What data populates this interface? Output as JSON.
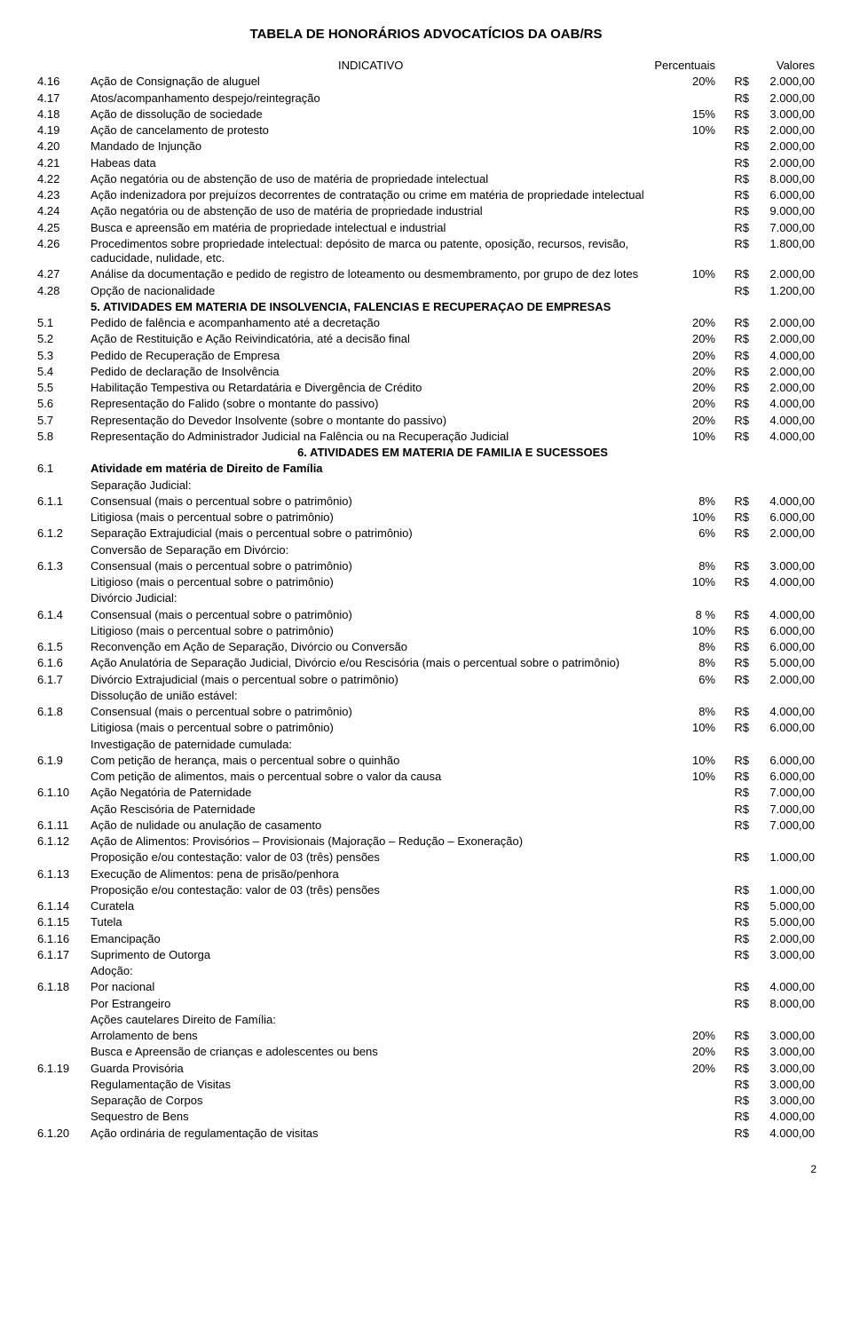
{
  "title": "TABELA DE HONORÁRIOS ADVOCATÍCIOS DA OAB/RS",
  "headers": {
    "indicativo": "INDICATIVO",
    "percentuais": "Percentuais",
    "valores": "Valores"
  },
  "page_number": "2",
  "fontsize_body": 13,
  "fontsize_title": 15,
  "text_color": "#000000",
  "background_color": "#ffffff",
  "rows": [
    {
      "num": "4.16",
      "desc": "Ação de Consignação de aluguel",
      "pct": "20%",
      "cur": "R$",
      "val": "2.000,00"
    },
    {
      "num": "4.17",
      "desc": "Atos/acompanhamento despejo/reintegração",
      "pct": "",
      "cur": "R$",
      "val": "2.000,00"
    },
    {
      "num": "4.18",
      "desc": "Ação de dissolução de sociedade",
      "pct": "15%",
      "cur": "R$",
      "val": "3.000,00"
    },
    {
      "num": "4.19",
      "desc": "Ação de cancelamento de protesto",
      "pct": "10%",
      "cur": "R$",
      "val": "2.000,00"
    },
    {
      "num": "4.20",
      "desc": "Mandado de Injunção",
      "pct": "",
      "cur": "R$",
      "val": "2.000,00"
    },
    {
      "num": "4.21",
      "desc": "Habeas data",
      "pct": "",
      "cur": "R$",
      "val": "2.000,00"
    },
    {
      "num": "4.22",
      "desc": "Ação negatória ou de abstenção de uso de matéria de propriedade intelectual",
      "pct": "",
      "cur": "R$",
      "val": "8.000,00"
    },
    {
      "num": "4.23",
      "desc": "Ação indenizadora por prejuízos decorrentes de contratação ou crime em matéria de propriedade intelectual",
      "pct": "",
      "cur": "R$",
      "val": "6.000,00"
    },
    {
      "num": "4.24",
      "desc": "Ação negatória ou de abstenção de uso de matéria de propriedade industrial",
      "pct": "",
      "cur": "R$",
      "val": "9.000,00"
    },
    {
      "num": "4.25",
      "desc": "Busca e apreensão em matéria de propriedade intelectual e industrial",
      "pct": "",
      "cur": "R$",
      "val": "7.000,00"
    },
    {
      "num": "4.26",
      "desc": "Procedimentos sobre propriedade intelectual: depósito de marca ou patente, oposição, recursos, revisão, caducidade, nulidade, etc.",
      "pct": "",
      "cur": "R$",
      "val": "1.800,00"
    },
    {
      "num": "4.27",
      "desc": "Análise da documentação e pedido de registro de loteamento ou desmembramento, por grupo de dez lotes",
      "pct": "10%",
      "cur": "R$",
      "val": "2.000,00"
    },
    {
      "num": "4.28",
      "desc": "Opção de nacionalidade",
      "pct": "",
      "cur": "R$",
      "val": "1.200,00"
    },
    {
      "section": true,
      "num": "",
      "desc": "5.    ATIVIDADES EM MATERIA DE INSOLVENCIA, FALENCIAS E RECUPERAÇAO DE EMPRESAS"
    },
    {
      "num": "5.1",
      "desc": "Pedido de falência e acompanhamento até a decretação",
      "pct": "20%",
      "cur": "R$",
      "val": "2.000,00"
    },
    {
      "num": "5.2",
      "desc": "Ação de Restituição e Ação Reivindicatória, até a decisão final",
      "pct": "20%",
      "cur": "R$",
      "val": "2.000,00"
    },
    {
      "num": "5.3",
      "desc": "Pedido de Recuperação de Empresa",
      "pct": "20%",
      "cur": "R$",
      "val": "4.000,00"
    },
    {
      "num": "5.4",
      "desc": "Pedido de declaração de Insolvência",
      "pct": "20%",
      "cur": "R$",
      "val": "2.000,00"
    },
    {
      "num": "5.5",
      "desc": "Habilitação Tempestiva ou Retardatária e Divergência de Crédito",
      "pct": "20%",
      "cur": "R$",
      "val": "2.000,00"
    },
    {
      "num": "5.6",
      "desc": "Representação do Falido (sobre o montante do passivo)",
      "pct": "20%",
      "cur": "R$",
      "val": "4.000,00"
    },
    {
      "num": "5.7",
      "desc": "Representação do Devedor Insolvente (sobre o montante do passivo)",
      "pct": "20%",
      "cur": "R$",
      "val": "4.000,00"
    },
    {
      "num": "5.8",
      "desc": "Representação do Administrador Judicial na Falência ou na Recuperação Judicial",
      "pct": "10%",
      "cur": "R$",
      "val": "4.000,00"
    },
    {
      "section": true,
      "num": "",
      "desc": "6.    ATIVIDADES EM MATERIA DE FAMILIA E SUCESSOES",
      "center": true
    },
    {
      "num": "6.1",
      "desc": "Atividade em matéria de Direito de Família",
      "bold": true
    },
    {
      "num": "",
      "desc": "Separação Judicial:"
    },
    {
      "num": "6.1.1",
      "desc": "Consensual (mais o percentual sobre o patrimônio)",
      "pct": "8%",
      "cur": "R$",
      "val": "4.000,00"
    },
    {
      "num": "",
      "desc": "Litigiosa (mais o percentual sobre o patrimônio)",
      "pct": "10%",
      "cur": "R$",
      "val": "6.000,00"
    },
    {
      "num": "6.1.2",
      "desc": "Separação Extrajudicial (mais o percentual sobre o patrimônio)",
      "pct": "6%",
      "cur": "R$",
      "val": "2.000,00"
    },
    {
      "num": "",
      "desc": "Conversão de Separação em Divórcio:"
    },
    {
      "num": "6.1.3",
      "desc": "Consensual (mais o percentual sobre o patrimônio)",
      "pct": "8%",
      "cur": "R$",
      "val": "3.000,00"
    },
    {
      "num": "",
      "desc": "Litigioso (mais o percentual sobre o patrimônio)",
      "pct": "10%",
      "cur": "R$",
      "val": "4.000,00"
    },
    {
      "num": "",
      "desc": "Divórcio Judicial:"
    },
    {
      "num": "6.1.4",
      "desc": "Consensual (mais o percentual sobre o patrimônio)",
      "pct": "8 %",
      "cur": "R$",
      "val": "4.000,00"
    },
    {
      "num": "",
      "desc": "Litigioso (mais o percentual sobre o patrimônio)",
      "pct": "10%",
      "cur": "R$",
      "val": "6.000,00"
    },
    {
      "num": "6.1.5",
      "desc": "Reconvenção em Ação de Separação, Divórcio ou Conversão",
      "pct": "8%",
      "cur": "R$",
      "val": "6.000,00"
    },
    {
      "num": "6.1.6",
      "desc": "Ação Anulatória de Separação Judicial, Divórcio e/ou Rescisória (mais o percentual sobre o patrimônio)",
      "pct": "8%",
      "cur": "R$",
      "val": "5.000,00"
    },
    {
      "num": "6.1.7",
      "desc": "Divórcio Extrajudicial (mais o percentual sobre o patrimônio)",
      "pct": "6%",
      "cur": "R$",
      "val": "2.000,00"
    },
    {
      "num": "",
      "desc": "Dissolução de união estável:"
    },
    {
      "num": "6.1.8",
      "desc": "Consensual (mais o percentual sobre o patrimônio)",
      "pct": "8%",
      "cur": "R$",
      "val": "4.000,00"
    },
    {
      "num": "",
      "desc": "Litigiosa (mais o percentual sobre o patrimônio)",
      "pct": "10%",
      "cur": "R$",
      "val": "6.000,00"
    },
    {
      "num": "",
      "desc": "Investigação de paternidade cumulada:"
    },
    {
      "num": "6.1.9",
      "desc": "Com petição de herança, mais o percentual sobre o quinhão",
      "pct": "10%",
      "cur": "R$",
      "val": "6.000,00"
    },
    {
      "num": "",
      "desc": "Com petição de alimentos, mais o percentual sobre o valor da causa",
      "pct": "10%",
      "cur": "R$",
      "val": "6.000,00"
    },
    {
      "num": "6.1.10",
      "desc": "Ação Negatória de Paternidade",
      "pct": "",
      "cur": "R$",
      "val": "7.000,00"
    },
    {
      "num": "",
      "desc": "Ação Rescisória de Paternidade",
      "pct": "",
      "cur": "R$",
      "val": "7.000,00"
    },
    {
      "num": "6.1.11",
      "desc": "Ação de nulidade ou anulação de casamento",
      "pct": "",
      "cur": "R$",
      "val": "7.000,00"
    },
    {
      "num": "6.1.12",
      "desc": "Ação de Alimentos: Provisórios – Provisionais  (Majoração – Redução – Exoneração)"
    },
    {
      "num": "",
      "desc": "Proposição e/ou contestação: valor de 03 (três) pensões",
      "pct": "",
      "cur": "R$",
      "val": "1.000,00"
    },
    {
      "num": "6.1.13",
      "desc": "Execução de Alimentos: pena de prisão/penhora"
    },
    {
      "num": "",
      "desc": "Proposição e/ou contestação: valor de 03 (três) pensões",
      "pct": "",
      "cur": "R$",
      "val": "1.000,00"
    },
    {
      "num": "6.1.14",
      "desc": "Curatela",
      "pct": "",
      "cur": "R$",
      "val": "5.000,00"
    },
    {
      "num": "6.1.15",
      "desc": "Tutela",
      "pct": "",
      "cur": "R$",
      "val": "5.000,00"
    },
    {
      "num": "6.1.16",
      "desc": "Emancipação",
      "pct": "",
      "cur": "R$",
      "val": "2.000,00"
    },
    {
      "num": "6.1.17",
      "desc": "Suprimento de Outorga",
      "pct": "",
      "cur": "R$",
      "val": "3.000,00"
    },
    {
      "num": "",
      "desc": "Adoção:"
    },
    {
      "num": "6.1.18",
      "desc": "Por nacional",
      "pct": "",
      "cur": "R$",
      "val": "4.000,00"
    },
    {
      "num": "",
      "desc": "Por Estrangeiro",
      "pct": "",
      "cur": "R$",
      "val": "8.000,00"
    },
    {
      "num": "",
      "desc": "Ações cautelares  Direito de Família:"
    },
    {
      "num": "",
      "desc": "Arrolamento de bens",
      "pct": "20%",
      "cur": "R$",
      "val": "3.000,00"
    },
    {
      "num": "",
      "desc": "Busca e Apreensão de crianças e adolescentes ou bens",
      "pct": "20%",
      "cur": "R$",
      "val": "3.000,00"
    },
    {
      "num": "6.1.19",
      "desc": "Guarda Provisória",
      "pct": "20%",
      "cur": "R$",
      "val": "3.000,00"
    },
    {
      "num": "",
      "desc": "Regulamentação de Visitas",
      "pct": "",
      "cur": "R$",
      "val": "3.000,00"
    },
    {
      "num": "",
      "desc": "Separação de Corpos",
      "pct": "",
      "cur": "R$",
      "val": "3.000,00"
    },
    {
      "num": "",
      "desc": "Sequestro de Bens",
      "pct": "",
      "cur": "R$",
      "val": "4.000,00"
    },
    {
      "num": "6.1.20",
      "desc": "Ação ordinária de regulamentação de visitas",
      "pct": "",
      "cur": "R$",
      "val": "4.000,00"
    }
  ]
}
